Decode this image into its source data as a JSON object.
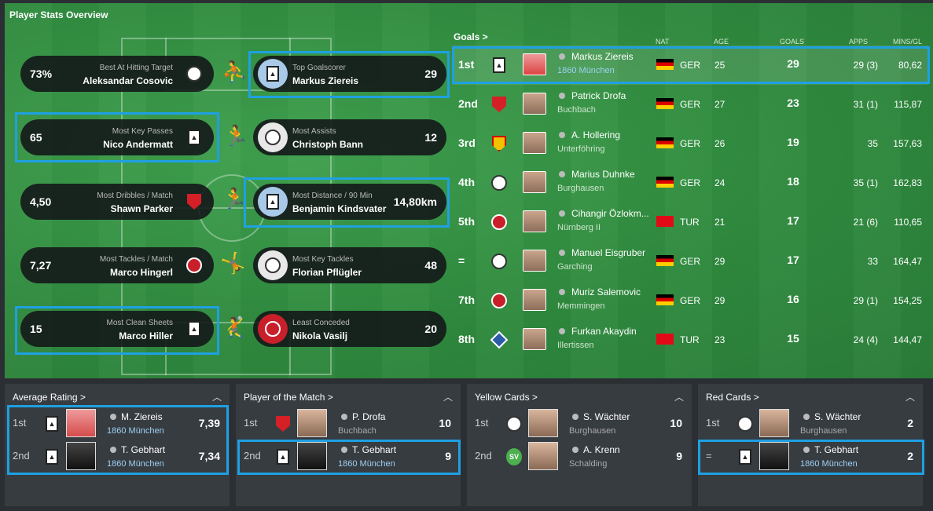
{
  "panel_title": "Player Stats Overview",
  "stats_left": [
    {
      "value": "73%",
      "category": "Best At Hitting Target",
      "player": "Aleksandar Cosovic"
    },
    {
      "value": "65",
      "category": "Most Key Passes",
      "player": "Nico Andermatt"
    },
    {
      "value": "4,50",
      "category": "Most Dribbles / Match",
      "player": "Shawn Parker"
    },
    {
      "value": "7,27",
      "category": "Most Tackles / Match",
      "player": "Marco Hingerl"
    },
    {
      "value": "15",
      "category": "Most Clean Sheets",
      "player": "Marco Hiller"
    }
  ],
  "stats_right": [
    {
      "value": "29",
      "category": "Top Goalscorer",
      "player": "Markus Ziereis"
    },
    {
      "value": "12",
      "category": "Most Assists",
      "player": "Christoph Bann"
    },
    {
      "value": "14,80km",
      "category": "Most Distance / 90 Min",
      "player": "Benjamin Kindsvater"
    },
    {
      "value": "48",
      "category": "Most Key Tackles",
      "player": "Florian Pflügler"
    },
    {
      "value": "20",
      "category": "Least Conceded",
      "player": "Nikola Vasilj"
    }
  ],
  "goals": {
    "title": "Goals >",
    "headers": {
      "nat": "NAT",
      "age": "AGE",
      "goals": "GOALS",
      "apps": "APPS",
      "mins": "MINS/GL"
    },
    "rows": [
      {
        "pos": "1st",
        "name": "Markus Ziereis",
        "club": "1860 München",
        "nat": "GER",
        "age": "25",
        "goals": "29",
        "apps": "29 (3)",
        "mins": "80,62"
      },
      {
        "pos": "2nd",
        "name": "Patrick Drofa",
        "club": "Buchbach",
        "nat": "GER",
        "age": "27",
        "goals": "23",
        "apps": "31 (1)",
        "mins": "115,87"
      },
      {
        "pos": "3rd",
        "name": "A. Hollering",
        "club": "Unterföhring",
        "nat": "GER",
        "age": "26",
        "goals": "19",
        "apps": "35",
        "mins": "157,63"
      },
      {
        "pos": "4th",
        "name": "Marius Duhnke",
        "club": "Burghausen",
        "nat": "GER",
        "age": "24",
        "goals": "18",
        "apps": "35 (1)",
        "mins": "162,83"
      },
      {
        "pos": "5th",
        "name": "Cihangir Özlokm...",
        "club": "Nürnberg II",
        "nat": "TUR",
        "age": "21",
        "goals": "17",
        "apps": "21 (6)",
        "mins": "110,65"
      },
      {
        "pos": "=",
        "name": "Manuel Eisgruber",
        "club": "Garching",
        "nat": "GER",
        "age": "29",
        "goals": "17",
        "apps": "33",
        "mins": "164,47"
      },
      {
        "pos": "7th",
        "name": "Muriz Salemovic",
        "club": "Memmingen",
        "nat": "GER",
        "age": "29",
        "goals": "16",
        "apps": "29 (1)",
        "mins": "154,25"
      },
      {
        "pos": "8th",
        "name": "Furkan Akaydin",
        "club": "Illertissen",
        "nat": "TUR",
        "age": "23",
        "goals": "15",
        "apps": "24 (4)",
        "mins": "144,47"
      }
    ]
  },
  "cards": [
    {
      "title": "Average Rating >",
      "rows": [
        {
          "rank": "1st",
          "name": "M. Ziereis",
          "club": "1860 München",
          "value": "7,39"
        },
        {
          "rank": "2nd",
          "name": "T. Gebhart",
          "club": "1860 München",
          "value": "7,34"
        }
      ]
    },
    {
      "title": "Player of the Match >",
      "rows": [
        {
          "rank": "1st",
          "name": "P. Drofa",
          "club": "Buchbach",
          "value": "10"
        },
        {
          "rank": "2nd",
          "name": "T. Gebhart",
          "club": "1860 München",
          "value": "9"
        }
      ]
    },
    {
      "title": "Yellow Cards >",
      "rows": [
        {
          "rank": "1st",
          "name": "S. Wächter",
          "club": "Burghausen",
          "value": "10"
        },
        {
          "rank": "2nd",
          "name": "A. Krenn",
          "club": "Schalding",
          "value": "9"
        }
      ]
    },
    {
      "title": "Red Cards >",
      "rows": [
        {
          "rank": "1st",
          "name": "S. Wächter",
          "club": "Burghausen",
          "value": "2"
        },
        {
          "rank": "=",
          "name": "T. Gebhart",
          "club": "1860 München",
          "value": "2"
        }
      ]
    }
  ],
  "colors": {
    "highlight": "#1ea0e3",
    "pitch": "#2f8a3e",
    "card_bg": "#373c41"
  }
}
